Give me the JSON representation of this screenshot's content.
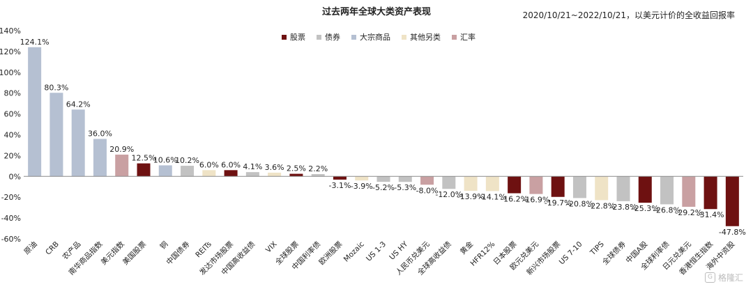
{
  "header": {
    "title": "过去两年全球大类资产表现",
    "subtitle": "2020/10/21~2022/10/21，以美元计价的全收益回报率"
  },
  "legend": [
    {
      "label": "股票",
      "color": "#6e1111"
    },
    {
      "label": "债券",
      "color": "#c2c2c2"
    },
    {
      "label": "大宗商品",
      "color": "#b5c0d2"
    },
    {
      "label": "其他另类",
      "color": "#efe3c6"
    },
    {
      "label": "汇率",
      "color": "#c9a0a2"
    }
  ],
  "watermark": {
    "logo": "G",
    "text": "格隆汇"
  },
  "chart_data": {
    "type": "bar",
    "ylim": [
      -60,
      140
    ],
    "y_ticks": [
      "-60%",
      "-40%",
      "-20%",
      "0%",
      "20%",
      "40%",
      "60%",
      "80%",
      "100%",
      "120%",
      "140%"
    ],
    "grid": false,
    "legend_position": "top",
    "categories": [
      "原油",
      "CRB",
      "农产品",
      "南华商品指数",
      "美元指数",
      "美国股票",
      "铜",
      "中国债券",
      "REITs",
      "发达市场股票",
      "中国高收益债",
      "VIX",
      "全球股票",
      "中国利率债",
      "欧洲股票",
      "Mozaic",
      "US 1-3",
      "US HY",
      "人民币兑美元",
      "全球高收益债",
      "黄金",
      "HFR12%",
      "日本股票",
      "欧元兑美元",
      "新兴市场股票",
      "US 7-10",
      "TIPS",
      "全球债券",
      "中国A股",
      "全球利率债",
      "日元兑美元",
      "香港恒生指数",
      "海外中资股"
    ],
    "values": [
      124.1,
      80.3,
      64.2,
      36.0,
      20.9,
      12.5,
      10.6,
      10.2,
      6.0,
      6.0,
      4.1,
      3.6,
      2.5,
      2.2,
      -3.1,
      -3.9,
      -5.2,
      -5.3,
      -8.0,
      -12.0,
      -13.9,
      -14.1,
      -16.2,
      -16.9,
      -19.7,
      -20.8,
      -22.8,
      -23.8,
      -25.3,
      -26.8,
      -29.2,
      -31.4,
      -47.8
    ],
    "labels": [
      "124.1%",
      "80.3%",
      "64.2%",
      "36.0%",
      "20.9%",
      "12.5%",
      "10.6%",
      "10.2%",
      "6.0%",
      "6.0%",
      "4.1%",
      "3.6%",
      "2.5%",
      "2.2%",
      "-3.1%",
      "-3.9%",
      "-5.2%",
      "-5.3%",
      "-8.0%",
      "-12.0%",
      "-13.9%",
      "-14.1%",
      "-16.2%",
      "-16.9%",
      "-19.7%",
      "-20.8%",
      "-22.8%",
      "-23.8%",
      "-25.3%",
      "-26.8%",
      "-29.2%",
      "-31.4%",
      "-47.8%"
    ],
    "classes": [
      "大宗商品",
      "大宗商品",
      "大宗商品",
      "大宗商品",
      "汇率",
      "股票",
      "大宗商品",
      "债券",
      "其他另类",
      "股票",
      "债券",
      "其他另类",
      "股票",
      "债券",
      "股票",
      "其他另类",
      "债券",
      "债券",
      "汇率",
      "债券",
      "其他另类",
      "其他另类",
      "股票",
      "汇率",
      "股票",
      "债券",
      "其他另类",
      "债券",
      "股票",
      "债券",
      "汇率",
      "股票",
      "股票"
    ]
  }
}
